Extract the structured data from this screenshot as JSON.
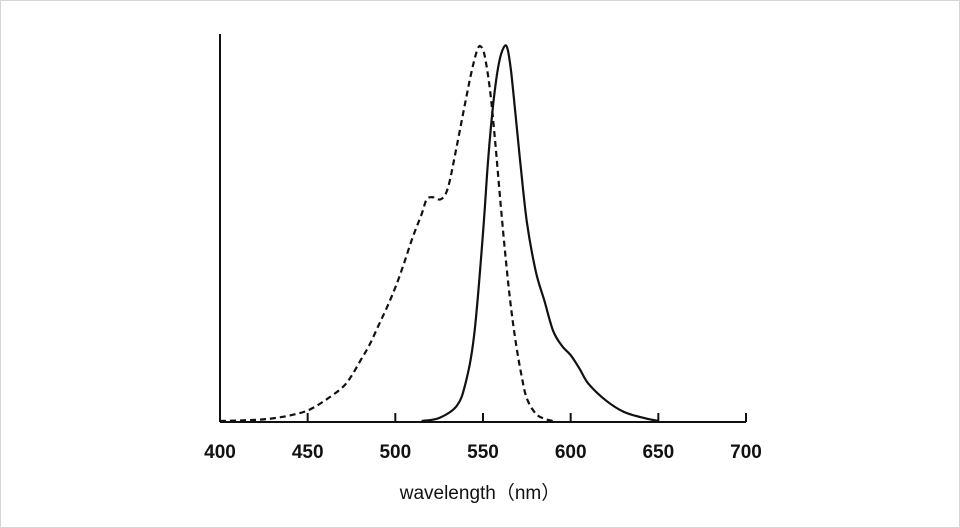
{
  "chart_data": {
    "type": "line",
    "title": "",
    "xlabel": "wavelength（nm）",
    "ylabel": "",
    "xlim": [
      400,
      700
    ],
    "ylim": [
      0,
      1
    ],
    "x_ticks": [
      400,
      450,
      500,
      550,
      600,
      650,
      700
    ],
    "grid": false,
    "legend": "none",
    "series": [
      {
        "style": "dashed",
        "color": "#111111",
        "points": [
          [
            400,
            0.0
          ],
          [
            420,
            0.003
          ],
          [
            430,
            0.007
          ],
          [
            440,
            0.015
          ],
          [
            450,
            0.028
          ],
          [
            460,
            0.055
          ],
          [
            470,
            0.09
          ],
          [
            475,
            0.12
          ],
          [
            480,
            0.16
          ],
          [
            485,
            0.2
          ],
          [
            490,
            0.25
          ],
          [
            495,
            0.3
          ],
          [
            500,
            0.355
          ],
          [
            505,
            0.42
          ],
          [
            510,
            0.49
          ],
          [
            515,
            0.55
          ],
          [
            518,
            0.59
          ],
          [
            522,
            0.595
          ],
          [
            526,
            0.59
          ],
          [
            530,
            0.62
          ],
          [
            535,
            0.73
          ],
          [
            540,
            0.85
          ],
          [
            544,
            0.94
          ],
          [
            547,
            0.99
          ],
          [
            549,
            0.995
          ],
          [
            551,
            0.97
          ],
          [
            554,
            0.88
          ],
          [
            557,
            0.74
          ],
          [
            560,
            0.58
          ],
          [
            563,
            0.43
          ],
          [
            566,
            0.3
          ],
          [
            569,
            0.2
          ],
          [
            572,
            0.12
          ],
          [
            575,
            0.06
          ],
          [
            580,
            0.02
          ],
          [
            585,
            0.006
          ],
          [
            590,
            0.0
          ]
        ]
      },
      {
        "style": "solid",
        "color": "#111111",
        "points": [
          [
            515,
            0.0
          ],
          [
            525,
            0.008
          ],
          [
            535,
            0.04
          ],
          [
            540,
            0.1
          ],
          [
            545,
            0.23
          ],
          [
            550,
            0.5
          ],
          [
            553,
            0.7
          ],
          [
            556,
            0.85
          ],
          [
            559,
            0.95
          ],
          [
            562,
            0.995
          ],
          [
            564,
            0.99
          ],
          [
            566,
            0.93
          ],
          [
            568,
            0.84
          ],
          [
            571,
            0.7
          ],
          [
            575,
            0.53
          ],
          [
            580,
            0.4
          ],
          [
            585,
            0.32
          ],
          [
            590,
            0.24
          ],
          [
            595,
            0.2
          ],
          [
            600,
            0.175
          ],
          [
            605,
            0.14
          ],
          [
            610,
            0.1
          ],
          [
            620,
            0.055
          ],
          [
            630,
            0.025
          ],
          [
            640,
            0.01
          ],
          [
            650,
            0.0
          ]
        ]
      }
    ]
  }
}
